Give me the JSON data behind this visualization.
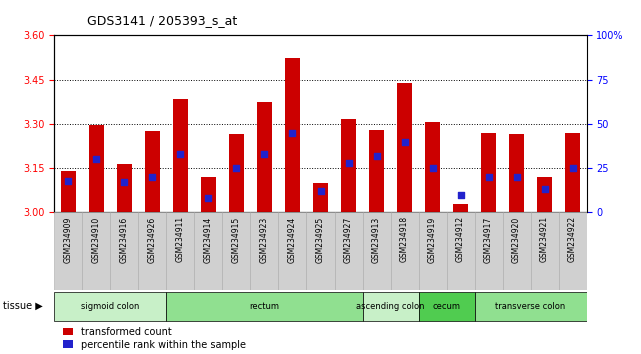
{
  "title": "GDS3141 / 205393_s_at",
  "samples": [
    "GSM234909",
    "GSM234910",
    "GSM234916",
    "GSM234926",
    "GSM234911",
    "GSM234914",
    "GSM234915",
    "GSM234923",
    "GSM234924",
    "GSM234925",
    "GSM234927",
    "GSM234913",
    "GSM234918",
    "GSM234919",
    "GSM234912",
    "GSM234917",
    "GSM234920",
    "GSM234921",
    "GSM234922"
  ],
  "transformed_count": [
    3.14,
    3.295,
    3.165,
    3.275,
    3.385,
    3.12,
    3.265,
    3.375,
    3.525,
    3.1,
    3.315,
    3.28,
    3.44,
    3.305,
    3.03,
    3.27,
    3.265,
    3.12,
    3.27
  ],
  "percentile_rank": [
    18,
    30,
    17,
    20,
    33,
    8,
    25,
    33,
    45,
    12,
    28,
    32,
    40,
    25,
    10,
    20,
    20,
    13,
    25
  ],
  "ylim_left": [
    3.0,
    3.6
  ],
  "ylim_right": [
    0,
    100
  ],
  "yticks_left": [
    3.0,
    3.15,
    3.3,
    3.45,
    3.6
  ],
  "yticks_right": [
    0,
    25,
    50,
    75,
    100
  ],
  "grid_lines": [
    3.15,
    3.3,
    3.45
  ],
  "bar_color": "#cc0000",
  "blue_color": "#2222cc",
  "tissue_groups": [
    {
      "label": "sigmoid colon",
      "start": 0,
      "end": 4,
      "color": "#c8f0c8"
    },
    {
      "label": "rectum",
      "start": 4,
      "end": 11,
      "color": "#90e090"
    },
    {
      "label": "ascending colon",
      "start": 11,
      "end": 13,
      "color": "#c8f0c8"
    },
    {
      "label": "cecum",
      "start": 13,
      "end": 15,
      "color": "#50cc50"
    },
    {
      "label": "transverse colon",
      "start": 15,
      "end": 19,
      "color": "#90e090"
    }
  ],
  "legend_items": [
    {
      "label": "transformed count",
      "color": "#cc0000"
    },
    {
      "label": "percentile rank within the sample",
      "color": "#2222cc"
    }
  ],
  "background_color": "#ffffff",
  "bar_width": 0.55,
  "baseline": 3.0,
  "xlabels_bg": "#cccccc",
  "cell_bg": "#d0d0d0",
  "cell_border": "#aaaaaa"
}
